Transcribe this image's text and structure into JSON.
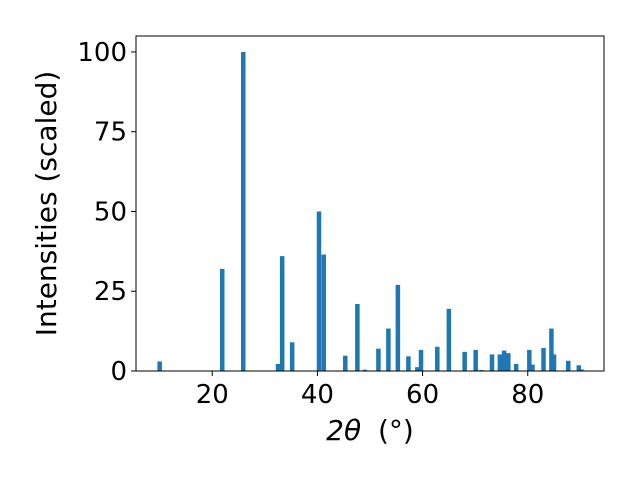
{
  "chart_data": {
    "type": "bar",
    "xlabel": "2θ (°)",
    "xlabel_parts": {
      "theta": "2θ",
      "unit": "(°)"
    },
    "ylabel": "Intensities (scaled)",
    "xlim": [
      5.5,
      94.5
    ],
    "ylim": [
      0,
      105
    ],
    "x_ticks": [
      20,
      40,
      60,
      80
    ],
    "y_ticks": [
      0,
      25,
      50,
      75,
      100
    ],
    "x_tick_labels": [
      "20",
      "40",
      "60",
      "80"
    ],
    "y_tick_labels": [
      "0",
      "25",
      "50",
      "75",
      "100"
    ],
    "grid": false,
    "bar_color": "#1f77b4",
    "bars": [
      {
        "x": 10.0,
        "y": 3.0
      },
      {
        "x": 21.9,
        "y": 32.0
      },
      {
        "x": 25.9,
        "y": 100.0
      },
      {
        "x": 32.5,
        "y": 2.2
      },
      {
        "x": 33.3,
        "y": 36.0
      },
      {
        "x": 35.2,
        "y": 9.0
      },
      {
        "x": 40.3,
        "y": 50.0
      },
      {
        "x": 41.2,
        "y": 36.5
      },
      {
        "x": 45.3,
        "y": 4.8
      },
      {
        "x": 47.6,
        "y": 21.0
      },
      {
        "x": 49.0,
        "y": 0.4
      },
      {
        "x": 51.6,
        "y": 7.0
      },
      {
        "x": 53.5,
        "y": 13.3
      },
      {
        "x": 55.3,
        "y": 27.0
      },
      {
        "x": 57.3,
        "y": 4.6
      },
      {
        "x": 59.0,
        "y": 1.2
      },
      {
        "x": 59.7,
        "y": 6.6
      },
      {
        "x": 62.8,
        "y": 7.6
      },
      {
        "x": 65.0,
        "y": 19.5
      },
      {
        "x": 68.0,
        "y": 6.0
      },
      {
        "x": 70.1,
        "y": 6.6
      },
      {
        "x": 71.2,
        "y": 0.3
      },
      {
        "x": 73.2,
        "y": 5.2
      },
      {
        "x": 74.7,
        "y": 5.2
      },
      {
        "x": 75.5,
        "y": 6.4
      },
      {
        "x": 76.3,
        "y": 5.6
      },
      {
        "x": 77.8,
        "y": 2.2
      },
      {
        "x": 80.3,
        "y": 6.6
      },
      {
        "x": 80.9,
        "y": 2.0
      },
      {
        "x": 83.0,
        "y": 7.2
      },
      {
        "x": 84.5,
        "y": 13.3
      },
      {
        "x": 85.0,
        "y": 5.2
      },
      {
        "x": 87.7,
        "y": 3.2
      },
      {
        "x": 89.7,
        "y": 1.8
      },
      {
        "x": 90.2,
        "y": 0.5
      }
    ]
  }
}
